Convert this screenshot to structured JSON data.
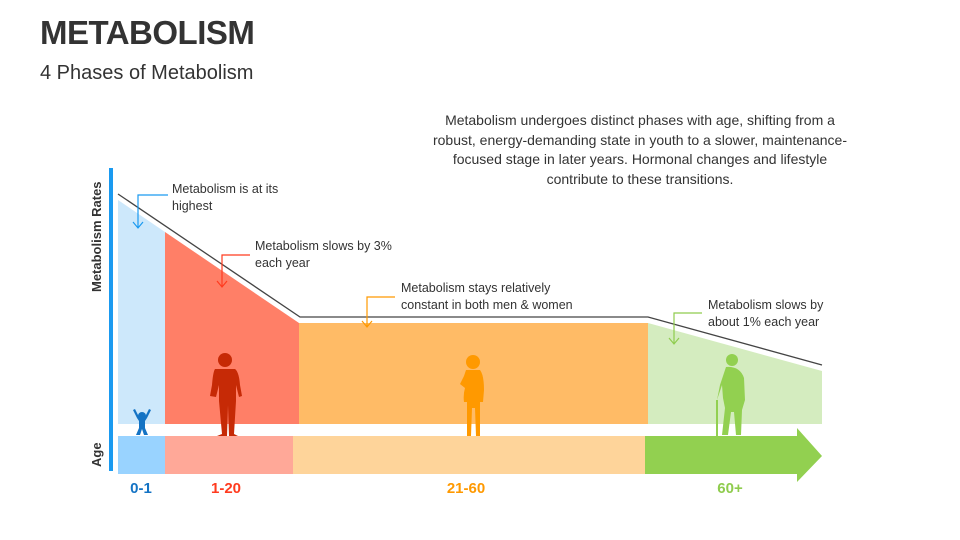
{
  "header": {
    "title": "METABOLISM",
    "subtitle": "4 Phases of Metabolism"
  },
  "description": "Metabolism undergoes distinct phases with age, shifting from a robust, energy-demanding state in youth to a slower, maintenance-focused stage in later years. Hormonal changes and lifestyle contribute to these transitions.",
  "axes": {
    "y_label": "Metabolism Rates",
    "age_label": "Age"
  },
  "phases": [
    {
      "age": "0-1",
      "note": "Metabolism is at its highest",
      "color": "#1473c4",
      "icon": "baby-icon"
    },
    {
      "age": "1-20",
      "note": "Metabolism slows by 3% each year",
      "color": "#ff3b1f",
      "icon": "young-person-icon"
    },
    {
      "age": "21-60",
      "note": "Metabolism stays relatively constant in both men & women",
      "color": "#ff9900",
      "icon": "adult-woman-icon"
    },
    {
      "age": "60+",
      "note": "Metabolism slows by about 1% each year",
      "color": "#8fcc4e",
      "icon": "elderly-person-icon"
    }
  ]
}
